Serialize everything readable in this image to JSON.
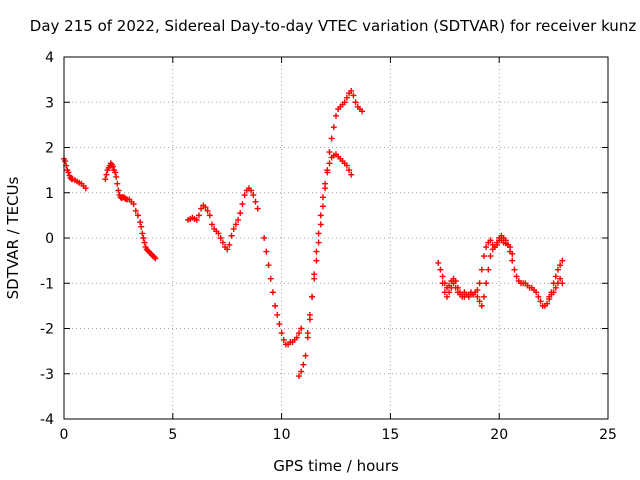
{
  "chart_data": {
    "type": "scatter",
    "title": "Day 215 of 2022, Sidereal Day-to-day VTEC variation (SDTVAR) for receiver kunz",
    "xlabel": "GPS time / hours",
    "ylabel": "SDTVAR / TECUs",
    "xlim": [
      0,
      25
    ],
    "ylim": [
      -4,
      4
    ],
    "xticks": [
      "0",
      "5",
      "10",
      "15",
      "20",
      "25"
    ],
    "yticks": [
      "-4",
      "-3",
      "-2",
      "-1",
      "0",
      "1",
      "2",
      "3",
      "4"
    ],
    "grid": true,
    "marker": "plus",
    "color": "#ff0000",
    "series": [
      {
        "x": [
          0.0,
          0.05,
          0.1,
          0.15,
          0.2,
          0.25,
          0.3,
          0.35,
          0.4,
          0.5,
          0.6,
          0.7,
          0.8,
          0.9,
          1.0
        ],
        "y": [
          1.75,
          1.7,
          1.6,
          1.5,
          1.45,
          1.38,
          1.33,
          1.3,
          1.3,
          1.28,
          1.25,
          1.22,
          1.2,
          1.15,
          1.1
        ]
      },
      {
        "x": [
          1.9,
          1.95,
          2.0,
          2.05,
          2.1,
          2.15,
          2.2,
          2.25,
          2.3,
          2.35,
          2.4,
          2.45,
          2.5,
          2.55,
          2.6,
          2.65,
          2.7,
          2.75,
          2.8,
          2.85,
          2.9,
          3.0,
          3.1,
          3.2,
          3.3,
          3.4,
          3.5,
          3.55,
          3.6,
          3.65,
          3.7,
          3.75,
          3.8,
          3.85,
          3.9,
          3.95,
          4.0,
          4.05,
          4.1,
          4.15,
          4.2
        ],
        "y": [
          1.3,
          1.4,
          1.5,
          1.55,
          1.6,
          1.65,
          1.62,
          1.58,
          1.5,
          1.45,
          1.35,
          1.2,
          1.05,
          0.95,
          0.9,
          0.88,
          0.9,
          0.9,
          0.88,
          0.86,
          0.85,
          0.85,
          0.8,
          0.75,
          0.6,
          0.5,
          0.35,
          0.25,
          0.1,
          0.0,
          -0.1,
          -0.2,
          -0.25,
          -0.28,
          -0.3,
          -0.33,
          -0.35,
          -0.38,
          -0.4,
          -0.42,
          -0.45
        ]
      },
      {
        "x": [
          5.7,
          5.8,
          5.9,
          6.0,
          6.1,
          6.2,
          6.3,
          6.4,
          6.5,
          6.6,
          6.7,
          6.8,
          6.9,
          7.0,
          7.1,
          7.2,
          7.3,
          7.4,
          7.5,
          7.6,
          7.7,
          7.8,
          7.9,
          8.0,
          8.1,
          8.2,
          8.3,
          8.4,
          8.5,
          8.6,
          8.7,
          8.8,
          8.9
        ],
        "y": [
          0.4,
          0.42,
          0.45,
          0.42,
          0.4,
          0.5,
          0.65,
          0.72,
          0.68,
          0.6,
          0.5,
          0.3,
          0.2,
          0.15,
          0.1,
          0.0,
          -0.1,
          -0.2,
          -0.25,
          -0.15,
          0.05,
          0.2,
          0.3,
          0.4,
          0.55,
          0.75,
          0.95,
          1.05,
          1.1,
          1.05,
          0.95,
          0.8,
          0.65
        ]
      },
      {
        "x": [
          9.2,
          9.3,
          9.4,
          9.5,
          9.6,
          9.7,
          9.8,
          9.9,
          10.0,
          10.1,
          10.2,
          10.3,
          10.4,
          10.5,
          10.6,
          10.7,
          10.8,
          10.9
        ],
        "y": [
          0.0,
          -0.3,
          -0.6,
          -0.9,
          -1.2,
          -1.5,
          -1.7,
          -1.9,
          -2.1,
          -2.25,
          -2.35,
          -2.35,
          -2.3,
          -2.3,
          -2.25,
          -2.2,
          -2.1,
          -2.0
        ]
      },
      {
        "x": [
          10.8,
          10.9,
          11.0,
          11.1,
          11.2,
          11.3,
          11.4,
          11.5,
          11.6,
          11.7,
          11.8,
          11.9,
          12.0,
          12.1,
          12.2,
          12.3,
          12.4,
          12.5,
          12.6,
          12.7,
          12.8,
          12.9,
          13.0,
          13.1,
          13.2
        ],
        "y": [
          -3.05,
          -2.95,
          -2.8,
          -2.6,
          -2.2,
          -1.8,
          -1.3,
          -0.8,
          -0.3,
          0.1,
          0.5,
          0.9,
          1.2,
          1.45,
          1.65,
          1.78,
          1.82,
          1.85,
          1.8,
          1.75,
          1.7,
          1.65,
          1.6,
          1.5,
          1.4
        ]
      },
      {
        "x": [
          11.2,
          11.3,
          11.4,
          11.5,
          11.6,
          11.7,
          11.8,
          11.9,
          12.0,
          12.1,
          12.2,
          12.3,
          12.4,
          12.5,
          12.6,
          12.7,
          12.8,
          12.9,
          13.0,
          13.1,
          13.2,
          13.3,
          13.4,
          13.5,
          13.6,
          13.7
        ],
        "y": [
          -2.1,
          -1.7,
          -1.3,
          -0.9,
          -0.5,
          -0.1,
          0.3,
          0.7,
          1.1,
          1.5,
          1.9,
          2.2,
          2.45,
          2.7,
          2.85,
          2.9,
          2.95,
          3.0,
          3.1,
          3.2,
          3.25,
          3.15,
          3.0,
          2.9,
          2.85,
          2.8
        ]
      },
      {
        "x": [
          17.2,
          17.3,
          17.4,
          17.5,
          17.6,
          17.7,
          17.8,
          17.9,
          18.0,
          18.1,
          18.2,
          18.3,
          18.4,
          18.5,
          18.6,
          18.7,
          18.8,
          18.9,
          19.0,
          19.1,
          19.2,
          19.3,
          19.4,
          19.5,
          19.6,
          19.7,
          19.8,
          19.9,
          20.0,
          20.1,
          20.2,
          20.3,
          20.4,
          20.5,
          20.6,
          20.7,
          20.8,
          20.9,
          21.0,
          21.1,
          21.2,
          21.3,
          21.4,
          21.5,
          21.6,
          21.7,
          21.8,
          21.9,
          22.0,
          22.1,
          22.2,
          22.3,
          22.4,
          22.5,
          22.6,
          22.7,
          22.8,
          22.9
        ],
        "y": [
          -0.55,
          -0.7,
          -0.85,
          -1.0,
          -1.1,
          -1.05,
          -0.95,
          -0.9,
          -0.95,
          -1.1,
          -1.2,
          -1.25,
          -1.2,
          -1.25,
          -1.25,
          -1.2,
          -1.25,
          -1.2,
          -1.15,
          -1.0,
          -0.7,
          -0.4,
          -0.2,
          -0.1,
          -0.05,
          -0.15,
          -0.2,
          -0.1,
          0.0,
          -0.05,
          -0.1,
          -0.12,
          -0.15,
          -0.3,
          -0.5,
          -0.7,
          -0.85,
          -0.95,
          -1.0,
          -1.0,
          -1.0,
          -1.05,
          -1.1,
          -1.1,
          -1.15,
          -1.2,
          -1.3,
          -1.4,
          -1.5,
          -1.5,
          -1.45,
          -1.35,
          -1.2,
          -1.0,
          -0.85,
          -0.7,
          -0.6,
          -0.5
        ]
      },
      {
        "x": [
          17.4,
          17.5,
          17.6,
          17.7,
          17.8,
          17.9,
          18.0,
          18.1,
          18.2,
          18.3,
          18.4,
          18.5,
          18.6,
          18.7,
          18.8,
          18.9,
          19.0,
          19.1,
          19.2,
          19.3,
          19.4,
          19.5,
          19.6,
          19.7,
          19.8,
          19.9,
          20.0,
          20.1,
          20.2,
          20.3,
          20.4,
          20.5,
          20.6,
          22.3,
          22.4,
          22.5,
          22.6,
          22.7,
          22.8,
          22.9
        ],
        "y": [
          -1.0,
          -1.2,
          -1.3,
          -1.2,
          -1.1,
          -1.0,
          -1.1,
          -1.2,
          -1.25,
          -1.3,
          -1.3,
          -1.25,
          -1.3,
          -1.25,
          -1.25,
          -1.2,
          -1.3,
          -1.4,
          -1.5,
          -1.3,
          -1.0,
          -0.7,
          -0.4,
          -0.25,
          -0.2,
          -0.15,
          -0.05,
          0.05,
          0.0,
          -0.05,
          -0.15,
          -0.2,
          -0.35,
          -1.3,
          -1.25,
          -1.2,
          -1.1,
          -1.0,
          -0.9,
          -1.0
        ]
      }
    ]
  }
}
